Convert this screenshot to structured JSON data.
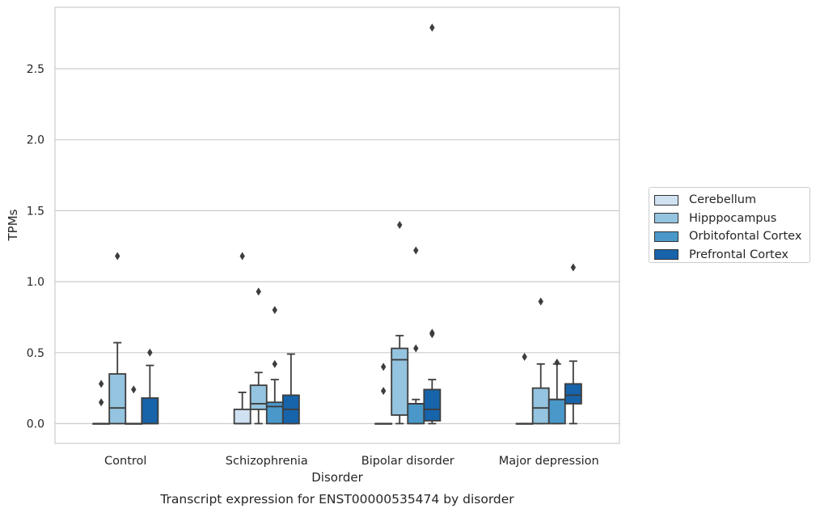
{
  "chart_data": {
    "type": "boxplot",
    "title": "Transcript expression for ENST00000535474 by disorder",
    "xlabel": "Disorder",
    "ylabel": "TPMs",
    "ylim": [
      -0.13,
      2.9
    ],
    "yticks": [
      "0.0",
      "0.5",
      "1.0",
      "1.5",
      "2.0",
      "2.5"
    ],
    "grid": "horizontal",
    "legend_position": "right",
    "categories": [
      "Control",
      "Schizophrenia",
      "Bipolar disorder",
      "Major depression"
    ],
    "series": [
      {
        "name": "Cerebellum",
        "color": "#d0e1f2",
        "boxes": [
          {
            "q1": 0,
            "median": 0,
            "q3": 0,
            "whisker_low": 0,
            "whisker_high": 0,
            "outliers": [
              0.15,
              0.28
            ]
          },
          {
            "q1": 0,
            "median": 0,
            "q3": 0.1,
            "whisker_low": 0,
            "whisker_high": 0.22,
            "outliers": [
              1.18
            ]
          },
          {
            "q1": 0,
            "median": 0,
            "q3": 0,
            "whisker_low": 0,
            "whisker_high": 0,
            "outliers": [
              0.23,
              0.4
            ]
          },
          {
            "q1": 0,
            "median": 0,
            "q3": 0,
            "whisker_low": 0,
            "whisker_high": 0,
            "outliers": [
              0.47
            ]
          }
        ]
      },
      {
        "name": "Hipppocampus",
        "color": "#94c4df",
        "boxes": [
          {
            "q1": 0,
            "median": 0.11,
            "q3": 0.35,
            "whisker_low": 0,
            "whisker_high": 0.57,
            "outliers": [
              1.18
            ]
          },
          {
            "q1": 0.1,
            "median": 0.14,
            "q3": 0.27,
            "whisker_low": 0,
            "whisker_high": 0.36,
            "outliers": [
              0.93
            ]
          },
          {
            "q1": 0.06,
            "median": 0.45,
            "q3": 0.53,
            "whisker_low": 0,
            "whisker_high": 0.62,
            "outliers": [
              1.4
            ]
          },
          {
            "q1": 0,
            "median": 0.11,
            "q3": 0.25,
            "whisker_low": 0,
            "whisker_high": 0.42,
            "outliers": [
              0.86
            ]
          }
        ]
      },
      {
        "name": "Orbitofontal Cortex",
        "color": "#4a98c9",
        "boxes": [
          {
            "q1": 0,
            "median": 0,
            "q3": 0,
            "whisker_low": 0,
            "whisker_high": 0,
            "outliers": [
              0.24
            ]
          },
          {
            "q1": 0,
            "median": 0.12,
            "q3": 0.15,
            "whisker_low": 0,
            "whisker_high": 0.31,
            "outliers": [
              0.42,
              0.8
            ]
          },
          {
            "q1": 0,
            "median": 0.14,
            "q3": 0.14,
            "whisker_low": 0,
            "whisker_high": 0.17,
            "outliers": [
              0.53,
              1.22
            ]
          },
          {
            "q1": 0,
            "median": 0.17,
            "q3": 0.17,
            "whisker_low": 0,
            "whisker_high": 0.42,
            "outliers": [
              0.43
            ]
          }
        ]
      },
      {
        "name": "Prefrontal Cortex",
        "color": "#1764ab",
        "boxes": [
          {
            "q1": 0,
            "median": 0,
            "q3": 0.18,
            "whisker_low": 0,
            "whisker_high": 0.41,
            "outliers": [
              0.5
            ]
          },
          {
            "q1": 0,
            "median": 0.1,
            "q3": 0.2,
            "whisker_low": 0,
            "whisker_high": 0.49,
            "outliers": []
          },
          {
            "q1": 0.02,
            "median": 0.1,
            "q3": 0.24,
            "whisker_low": 0,
            "whisker_high": 0.31,
            "outliers": [
              0.63,
              0.64,
              2.79
            ]
          },
          {
            "q1": 0.14,
            "median": 0.2,
            "q3": 0.28,
            "whisker_low": 0,
            "whisker_high": 0.44,
            "outliers": [
              1.1
            ]
          }
        ]
      }
    ]
  }
}
